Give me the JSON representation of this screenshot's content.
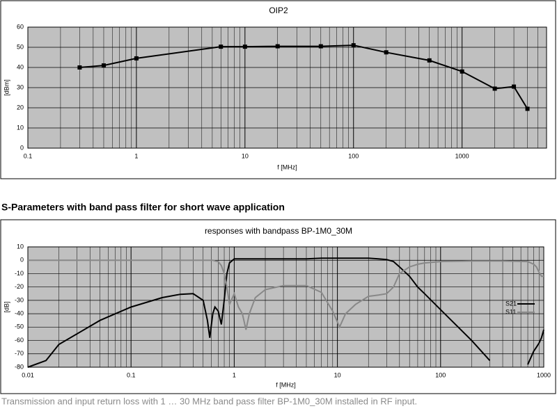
{
  "heading": "S-Parameters with band pass filter for short wave application",
  "caption": "Transmission and input return loss with 1 … 30 MHz band pass filter BP-1M0_30M installed in RF input.",
  "chart_data": [
    {
      "type": "line",
      "title": "OIP2",
      "x_label": "f [MHz]",
      "y_label": "[dBm]",
      "log_x": true,
      "grid": true,
      "markers": true,
      "x": [
        0.3,
        0.5,
        1,
        6,
        10,
        20,
        50,
        100,
        200,
        500,
        1000,
        2000,
        3000,
        4000
      ],
      "series": [
        {
          "name": "OIP2",
          "color": "#000000",
          "values": [
            40,
            41,
            44.5,
            50.3,
            50.3,
            50.5,
            50.5,
            51,
            47.5,
            43.5,
            38,
            29.5,
            30.5,
            19.5
          ]
        }
      ],
      "xlim": [
        0.1,
        6000
      ],
      "xticks": [
        0.1,
        1,
        10,
        100,
        1000
      ],
      "ylim": [
        0,
        60
      ],
      "yticks": [
        0,
        10,
        20,
        30,
        40,
        50,
        60
      ]
    },
    {
      "type": "line",
      "title": "responses with bandpass BP-1M0_30M",
      "x_label": "f [MHz]",
      "y_label": "[dB]",
      "log_x": true,
      "grid": true,
      "markers": false,
      "legend": "right",
      "x": [
        0.01,
        0.015,
        0.02,
        0.05,
        0.1,
        0.2,
        0.3,
        0.4,
        0.5,
        0.55,
        0.58,
        0.62,
        0.65,
        0.7,
        0.75,
        0.8,
        0.85,
        0.9,
        1,
        1.1,
        1.2,
        1.3,
        1.4,
        1.6,
        2,
        3,
        5,
        7,
        9,
        10.5,
        12,
        15,
        20,
        25,
        30,
        35,
        40,
        50,
        60,
        70,
        100,
        200,
        300,
        400,
        700,
        800,
        850,
        900,
        950,
        1000
      ],
      "series": [
        {
          "name": "S21",
          "color": "#000000",
          "values": [
            -80,
            -75,
            -63,
            -45,
            -35,
            -28,
            -25.5,
            -25,
            -30,
            -45,
            -58,
            -40,
            -35,
            -38,
            -48,
            -30,
            -10,
            -2,
            1,
            1,
            1,
            1,
            1,
            1,
            1,
            1,
            1,
            1.5,
            1.5,
            1.5,
            1.5,
            1.5,
            1.5,
            1,
            0.5,
            -1,
            -5,
            -12,
            -20,
            -25,
            -37,
            -60,
            -75,
            null,
            -78,
            -68,
            -65,
            -62,
            -58,
            -52
          ]
        },
        {
          "name": "S11",
          "color": "#888888",
          "values": [
            0,
            0,
            0,
            0,
            0,
            0,
            0,
            0,
            0,
            0,
            0,
            0,
            -0.5,
            -1,
            -4,
            -10,
            -20,
            -33,
            -25,
            -35,
            -40,
            -52,
            -40,
            -28,
            -22,
            -19,
            -19,
            -24,
            -38,
            -50,
            -40,
            -33,
            -27,
            -26,
            -25,
            -20,
            -10,
            -5,
            -3,
            -2,
            -1,
            -0.5,
            -0.5,
            -0.5,
            -1,
            -3,
            -5,
            -9,
            -12,
            -12
          ]
        }
      ],
      "xlim": [
        0.01,
        1000
      ],
      "xticks": [
        0.01,
        0.1,
        1,
        10,
        100,
        1000
      ],
      "ylim": [
        -80,
        10
      ],
      "yticks": [
        -80,
        -70,
        -60,
        -50,
        -40,
        -30,
        -20,
        -10,
        0,
        10
      ]
    }
  ]
}
